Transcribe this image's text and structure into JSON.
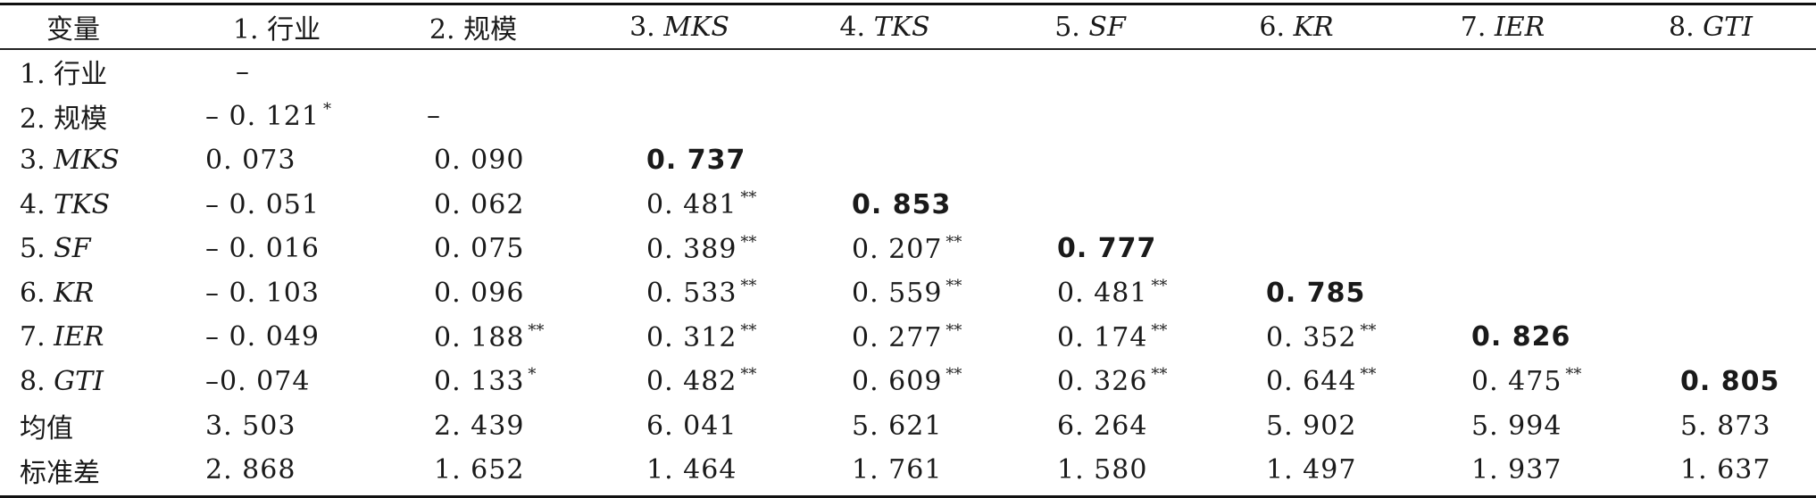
{
  "header": {
    "variable_label": "变量",
    "columns": [
      {
        "num": "1. ",
        "name": "行业",
        "italic": false
      },
      {
        "num": "2. ",
        "name": "规模",
        "italic": false
      },
      {
        "num": "3. ",
        "name": "MKS",
        "italic": true
      },
      {
        "num": "4. ",
        "name": "TKS",
        "italic": true
      },
      {
        "num": "5. ",
        "name": "SF",
        "italic": true
      },
      {
        "num": "6. ",
        "name": "KR",
        "italic": true
      },
      {
        "num": "7. ",
        "name": "IER",
        "italic": true
      },
      {
        "num": "8. ",
        "name": "GTI",
        "italic": true
      }
    ]
  },
  "rows": [
    {
      "num": "1. ",
      "name": "行业",
      "italic": false,
      "cells": [
        {
          "v": "–",
          "dash": true
        }
      ]
    },
    {
      "num": "2. ",
      "name": "规模",
      "italic": false,
      "cells": [
        {
          "v": "– 0. 121",
          "sig": "*"
        },
        {
          "v": "–",
          "dash": true
        }
      ]
    },
    {
      "num": "3. ",
      "name": "MKS",
      "italic": true,
      "cells": [
        {
          "v": "0. 073"
        },
        {
          "v": "0. 090"
        },
        {
          "v": "0. 737",
          "bold": true
        }
      ]
    },
    {
      "num": "4. ",
      "name": "TKS",
      "italic": true,
      "cells": [
        {
          "v": "– 0. 051"
        },
        {
          "v": "0. 062"
        },
        {
          "v": "0. 481",
          "sig": "**"
        },
        {
          "v": "0. 853",
          "bold": true
        }
      ]
    },
    {
      "num": "5. ",
      "name": "SF",
      "italic": true,
      "cells": [
        {
          "v": "– 0. 016"
        },
        {
          "v": "0. 075"
        },
        {
          "v": "0. 389",
          "sig": "**"
        },
        {
          "v": "0. 207",
          "sig": "**"
        },
        {
          "v": "0. 777",
          "bold": true
        }
      ]
    },
    {
      "num": "6. ",
      "name": "KR",
      "italic": true,
      "cells": [
        {
          "v": "– 0. 103"
        },
        {
          "v": "0. 096"
        },
        {
          "v": "0. 533",
          "sig": "**"
        },
        {
          "v": "0. 559",
          "sig": "**"
        },
        {
          "v": "0. 481",
          "sig": "**"
        },
        {
          "v": "0. 785",
          "bold": true
        }
      ]
    },
    {
      "num": "7. ",
      "name": "IER",
      "italic": true,
      "cells": [
        {
          "v": "– 0. 049"
        },
        {
          "v": "0. 188",
          "sig": "**"
        },
        {
          "v": "0. 312",
          "sig": "**"
        },
        {
          "v": "0. 277",
          "sig": "**"
        },
        {
          "v": "0. 174",
          "sig": "**"
        },
        {
          "v": "0. 352",
          "sig": "**"
        },
        {
          "v": "0. 826",
          "bold": true
        }
      ]
    },
    {
      "num": "8. ",
      "name": "GTI",
      "italic": true,
      "cells": [
        {
          "v": "–0. 074"
        },
        {
          "v": "0. 133",
          "sig": "*"
        },
        {
          "v": "0. 482",
          "sig": "**"
        },
        {
          "v": "0. 609",
          "sig": "**"
        },
        {
          "v": "0. 326",
          "sig": "**"
        },
        {
          "v": "0. 644",
          "sig": "**"
        },
        {
          "v": "0. 475",
          "sig": "**"
        },
        {
          "v": "0. 805",
          "bold": true
        }
      ]
    },
    {
      "num": "",
      "name": "均值",
      "italic": false,
      "cells": [
        {
          "v": "3. 503"
        },
        {
          "v": "2. 439"
        },
        {
          "v": "6. 041"
        },
        {
          "v": "5. 621"
        },
        {
          "v": "6. 264"
        },
        {
          "v": "5. 902"
        },
        {
          "v": "5. 994"
        },
        {
          "v": "5. 873"
        }
      ]
    },
    {
      "num": "",
      "name": "标准差",
      "italic": false,
      "cells": [
        {
          "v": "2. 868"
        },
        {
          "v": "1. 652"
        },
        {
          "v": "1. 464"
        },
        {
          "v": "1. 761"
        },
        {
          "v": "1. 580"
        },
        {
          "v": "1. 497"
        },
        {
          "v": "1. 937"
        },
        {
          "v": "1. 637"
        }
      ]
    }
  ]
}
